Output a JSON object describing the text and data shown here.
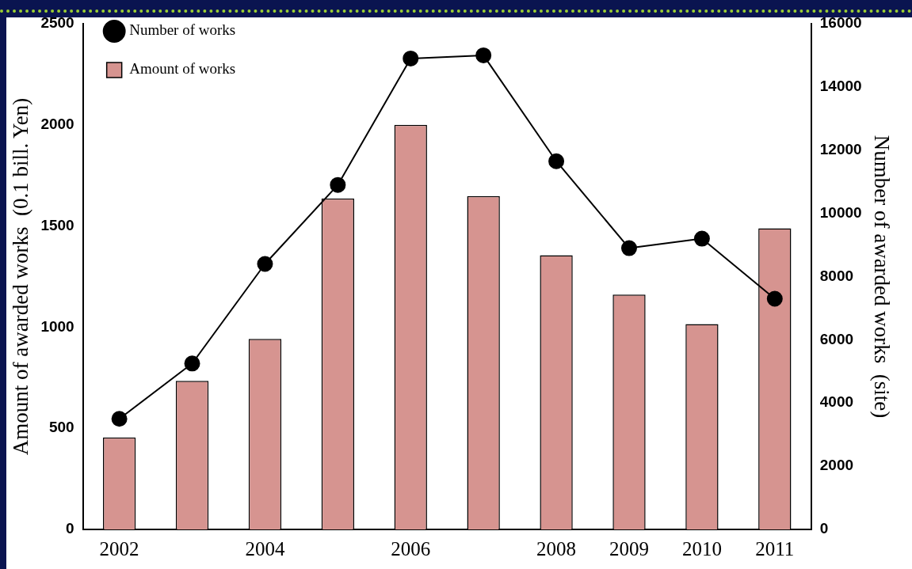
{
  "chart_data": {
    "type": "bar",
    "categories": [
      "2002",
      null,
      "2004",
      null,
      "2006",
      null,
      "2008",
      "2009",
      "2010",
      "2011"
    ],
    "ylabel": "Amount of awarded works  (0.1 bill. Yen)",
    "y2label": "Number of awarded works  (site)",
    "ylim": [
      0,
      2500
    ],
    "yticks": [
      0,
      500,
      1000,
      1500,
      2000,
      2500
    ],
    "y2lim": [
      0,
      16000
    ],
    "y2ticks": [
      0,
      2000,
      4000,
      6000,
      8000,
      10000,
      12000,
      14000,
      16000
    ],
    "series": [
      {
        "name": "Amount of works",
        "color": "#d69490",
        "values": [
          455,
          735,
          942,
          1636,
          2000,
          1648,
          1356,
          1161,
          1015,
          1489
        ]
      },
      {
        "name": "Number of works",
        "type": "line",
        "axis": "y2",
        "color": "#000000",
        "marker": "circle",
        "values": [
          3500,
          5250,
          8400,
          10900,
          14900,
          15000,
          11650,
          8900,
          9200,
          7300
        ]
      }
    ],
    "legend": "top left",
    "grid": false
  }
}
